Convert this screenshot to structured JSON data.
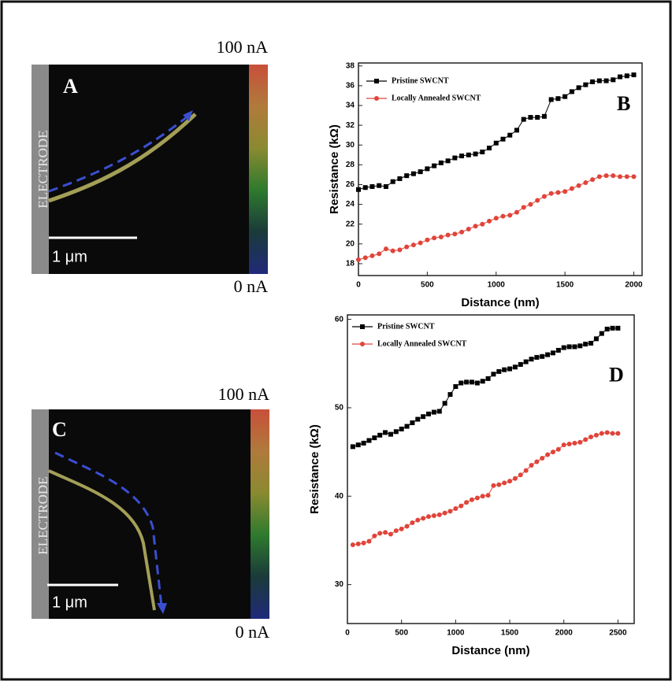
{
  "chart_data": [
    {
      "type": "line",
      "label": "B",
      "xlabel": "Distance (nm)",
      "ylabel": "Resistance (kΩ)",
      "x": [
        0,
        50,
        100,
        150,
        200,
        250,
        300,
        350,
        400,
        450,
        500,
        550,
        600,
        650,
        700,
        750,
        800,
        850,
        900,
        950,
        1000,
        1050,
        1100,
        1150,
        1200,
        1250,
        1300,
        1350,
        1400,
        1450,
        1500,
        1550,
        1600,
        1650,
        1700,
        1750,
        1800,
        1850,
        1900,
        1950,
        2000
      ],
      "series": [
        {
          "name": "Pristine SWCNT",
          "color": "#000000",
          "marker": "square",
          "values": [
            25.5,
            25.7,
            25.8,
            25.9,
            25.8,
            26.3,
            26.6,
            26.9,
            27.1,
            27.3,
            27.6,
            27.9,
            28.2,
            28.4,
            28.7,
            28.9,
            29.0,
            29.1,
            29.3,
            29.7,
            30.2,
            30.6,
            31.0,
            31.5,
            32.6,
            32.8,
            32.8,
            32.9,
            34.6,
            34.7,
            34.9,
            35.4,
            35.8,
            36.1,
            36.4,
            36.5,
            36.5,
            36.6,
            36.9,
            37.0,
            37.1
          ]
        },
        {
          "name": "Locally Annealed SWCNT",
          "color": "#e0443a",
          "marker": "circle",
          "values": [
            18.4,
            18.6,
            18.8,
            19.0,
            19.5,
            19.3,
            19.4,
            19.7,
            19.9,
            20.1,
            20.4,
            20.6,
            20.7,
            20.9,
            21.0,
            21.2,
            21.5,
            21.8,
            22.0,
            22.3,
            22.6,
            22.8,
            22.9,
            23.2,
            23.7,
            24.0,
            24.4,
            24.8,
            25.1,
            25.2,
            25.3,
            25.6,
            25.9,
            26.2,
            26.5,
            26.8,
            26.9,
            26.9,
            26.8,
            26.8,
            26.8
          ]
        }
      ],
      "xlim": [
        0,
        2060
      ],
      "ylim": [
        16.8,
        38.3
      ],
      "xticks": [
        0,
        500,
        1000,
        1500,
        2000
      ],
      "yticks": [
        18,
        20,
        22,
        24,
        26,
        28,
        30,
        32,
        34,
        36,
        38
      ],
      "legend": "upper left"
    },
    {
      "type": "line",
      "label": "D",
      "xlabel": "Distance (nm)",
      "ylabel": "Resistance (kΩ)",
      "x": [
        50,
        100,
        150,
        200,
        250,
        300,
        350,
        400,
        450,
        500,
        550,
        600,
        650,
        700,
        750,
        800,
        850,
        900,
        950,
        1000,
        1050,
        1100,
        1150,
        1200,
        1250,
        1300,
        1350,
        1400,
        1450,
        1500,
        1550,
        1600,
        1650,
        1700,
        1750,
        1800,
        1850,
        1900,
        1950,
        2000,
        2050,
        2100,
        2150,
        2200,
        2250,
        2300,
        2350,
        2400,
        2450,
        2500
      ],
      "series": [
        {
          "name": "Pristine SWCNT",
          "color": "#000000",
          "marker": "square",
          "values": [
            45.6,
            45.8,
            46.0,
            46.3,
            46.6,
            46.9,
            47.2,
            47.0,
            47.3,
            47.6,
            47.9,
            48.3,
            48.7,
            49.0,
            49.3,
            49.5,
            49.6,
            50.5,
            51.5,
            52.4,
            52.8,
            52.9,
            52.9,
            52.8,
            53.0,
            53.3,
            53.8,
            54.1,
            54.3,
            54.4,
            54.6,
            54.9,
            55.2,
            55.5,
            55.7,
            55.8,
            56.0,
            56.2,
            56.5,
            56.8,
            56.9,
            56.9,
            57.0,
            57.2,
            57.3,
            57.8,
            58.4,
            58.9,
            59.0,
            59.0
          ]
        },
        {
          "name": "Locally Annealed SWCNT",
          "color": "#e0443a",
          "marker": "circle",
          "values": [
            34.5,
            34.6,
            34.7,
            34.9,
            35.5,
            35.8,
            35.9,
            35.7,
            36.1,
            36.3,
            36.6,
            37.0,
            37.3,
            37.5,
            37.7,
            37.8,
            37.9,
            38.1,
            38.3,
            38.6,
            38.9,
            39.3,
            39.6,
            39.8,
            40.0,
            40.1,
            41.2,
            41.3,
            41.5,
            41.7,
            42.0,
            42.4,
            42.9,
            43.5,
            43.9,
            44.3,
            44.7,
            45.0,
            45.3,
            45.8,
            45.9,
            46.0,
            46.1,
            46.4,
            46.7,
            46.9,
            47.1,
            47.2,
            47.1,
            47.1
          ]
        }
      ],
      "xlim": [
        0,
        2650
      ],
      "ylim": [
        25.6,
        60.5
      ],
      "xticks": [
        0,
        500,
        1000,
        1500,
        2000,
        2500
      ],
      "yticks": [
        30,
        40,
        50,
        60
      ],
      "legend": "upper left"
    }
  ],
  "images": [
    {
      "letter": "A",
      "side_label": "ELECTRODE",
      "scale_label": "1 μm",
      "max_label": "100 nA",
      "min_label": "0 nA"
    },
    {
      "letter": "C",
      "side_label": "ELECTRODE",
      "scale_label": "1 μm",
      "max_label": "100 nA",
      "min_label": "0 nA"
    }
  ]
}
